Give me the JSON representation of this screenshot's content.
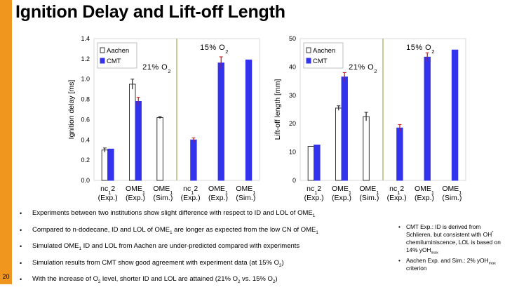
{
  "slide": {
    "title": "Ignition Delay and Lift-off Length",
    "page_number": "20"
  },
  "chart_data": [
    {
      "type": "bar",
      "ylabel": "Ignition delay [ms]",
      "ylim": [
        0,
        1.4
      ],
      "yticks": [
        "0.0",
        "0.2",
        "0.4",
        "0.6",
        "0.8",
        "1.0",
        "1.2",
        "1.4"
      ],
      "legend": [
        "Aachen",
        "CMT"
      ],
      "legend_position": "top-left",
      "groups": [
        {
          "annotation": "21% O2",
          "categories": [
            {
              "label1": "nc12",
              "label2": "(Exp.)",
              "aachen": 0.3,
              "cmt": 0.31,
              "aachen_err": 0.02,
              "cmt_err": 0
            },
            {
              "label1": "OME1",
              "label2": "(Exp.)",
              "aachen": 0.95,
              "cmt": 0.78,
              "aachen_err": 0.05,
              "cmt_err": 0.04
            },
            {
              "label1": "OME1",
              "label2": "(Sim.)",
              "aachen": 0.62,
              "cmt": null,
              "aachen_err": 0.01,
              "cmt_err": 0
            }
          ]
        },
        {
          "annotation": "15% O2",
          "categories": [
            {
              "label1": "nc12",
              "label2": "(Exp.)",
              "aachen": null,
              "cmt": 0.4,
              "aachen_err": 0,
              "cmt_err": 0.02
            },
            {
              "label1": "OME1",
              "label2": "(Exp.)",
              "aachen": null,
              "cmt": 1.16,
              "aachen_err": 0,
              "cmt_err": 0.06
            },
            {
              "label1": "OME1",
              "label2": "(Sim.)",
              "aachen": null,
              "cmt": 1.19,
              "aachen_err": 0,
              "cmt_err": 0
            }
          ]
        }
      ]
    },
    {
      "type": "bar",
      "ylabel": "Lift-off length [mm]",
      "ylim": [
        0,
        50
      ],
      "yticks": [
        "0",
        "10",
        "20",
        "30",
        "40",
        "50"
      ],
      "legend": [
        "Aachen",
        "CMT"
      ],
      "legend_position": "top-left",
      "groups": [
        {
          "annotation": "21% O2",
          "categories": [
            {
              "label1": "nc12",
              "label2": "(Exp.)",
              "aachen": 12,
              "cmt": 12.5,
              "aachen_err": 0,
              "cmt_err": 0
            },
            {
              "label1": "OME1",
              "label2": "(Exp.)",
              "aachen": 25.5,
              "cmt": 36.5,
              "aachen_err": 0.8,
              "cmt_err": 1.5
            },
            {
              "label1": "OME1",
              "label2": "(Sim.)",
              "aachen": 22.5,
              "cmt": null,
              "aachen_err": 1.5,
              "cmt_err": 0
            }
          ]
        },
        {
          "annotation": "15% O2",
          "categories": [
            {
              "label1": "nc12",
              "label2": "(Exp.)",
              "aachen": null,
              "cmt": 18.5,
              "aachen_err": 0,
              "cmt_err": 1.2
            },
            {
              "label1": "OME1",
              "label2": "(Exp.)",
              "aachen": null,
              "cmt": 43.5,
              "aachen_err": 0,
              "cmt_err": 1.5
            },
            {
              "label1": "OME1",
              "label2": "(Sim.)",
              "aachen": null,
              "cmt": 46,
              "aachen_err": 0,
              "cmt_err": 0
            }
          ]
        }
      ]
    }
  ],
  "bullets": [
    "Experiments between two institutions show slight difference with respect to ID and LOL of OME1",
    "Compared to n-dodecane, ID and LOL of OME1 are longer as expected from the low CN of OME1",
    "Simulated OME1 ID and LOL from Aachen are under-predicted compared with experiments",
    "Simulation results from CMT show good agreement with experiment data (at 15% O2)",
    "With the increase of O2 level, shorter ID and LOL are attained (21% O2 vs. 15% O2)"
  ],
  "notes": [
    "CMT Exp.: ID is derived from Schlieren, but consistent with OH* chemiluminiscence, LOL is based on 14% yOHmax",
    "Aachen Exp. and Sim.: 2% yOHmax criterion"
  ],
  "colors": {
    "cmt": "#3333ee",
    "aachen": "#ffffff",
    "error": "#cc1111",
    "divider": "#8a9a3a",
    "accent": "#f0961e"
  }
}
